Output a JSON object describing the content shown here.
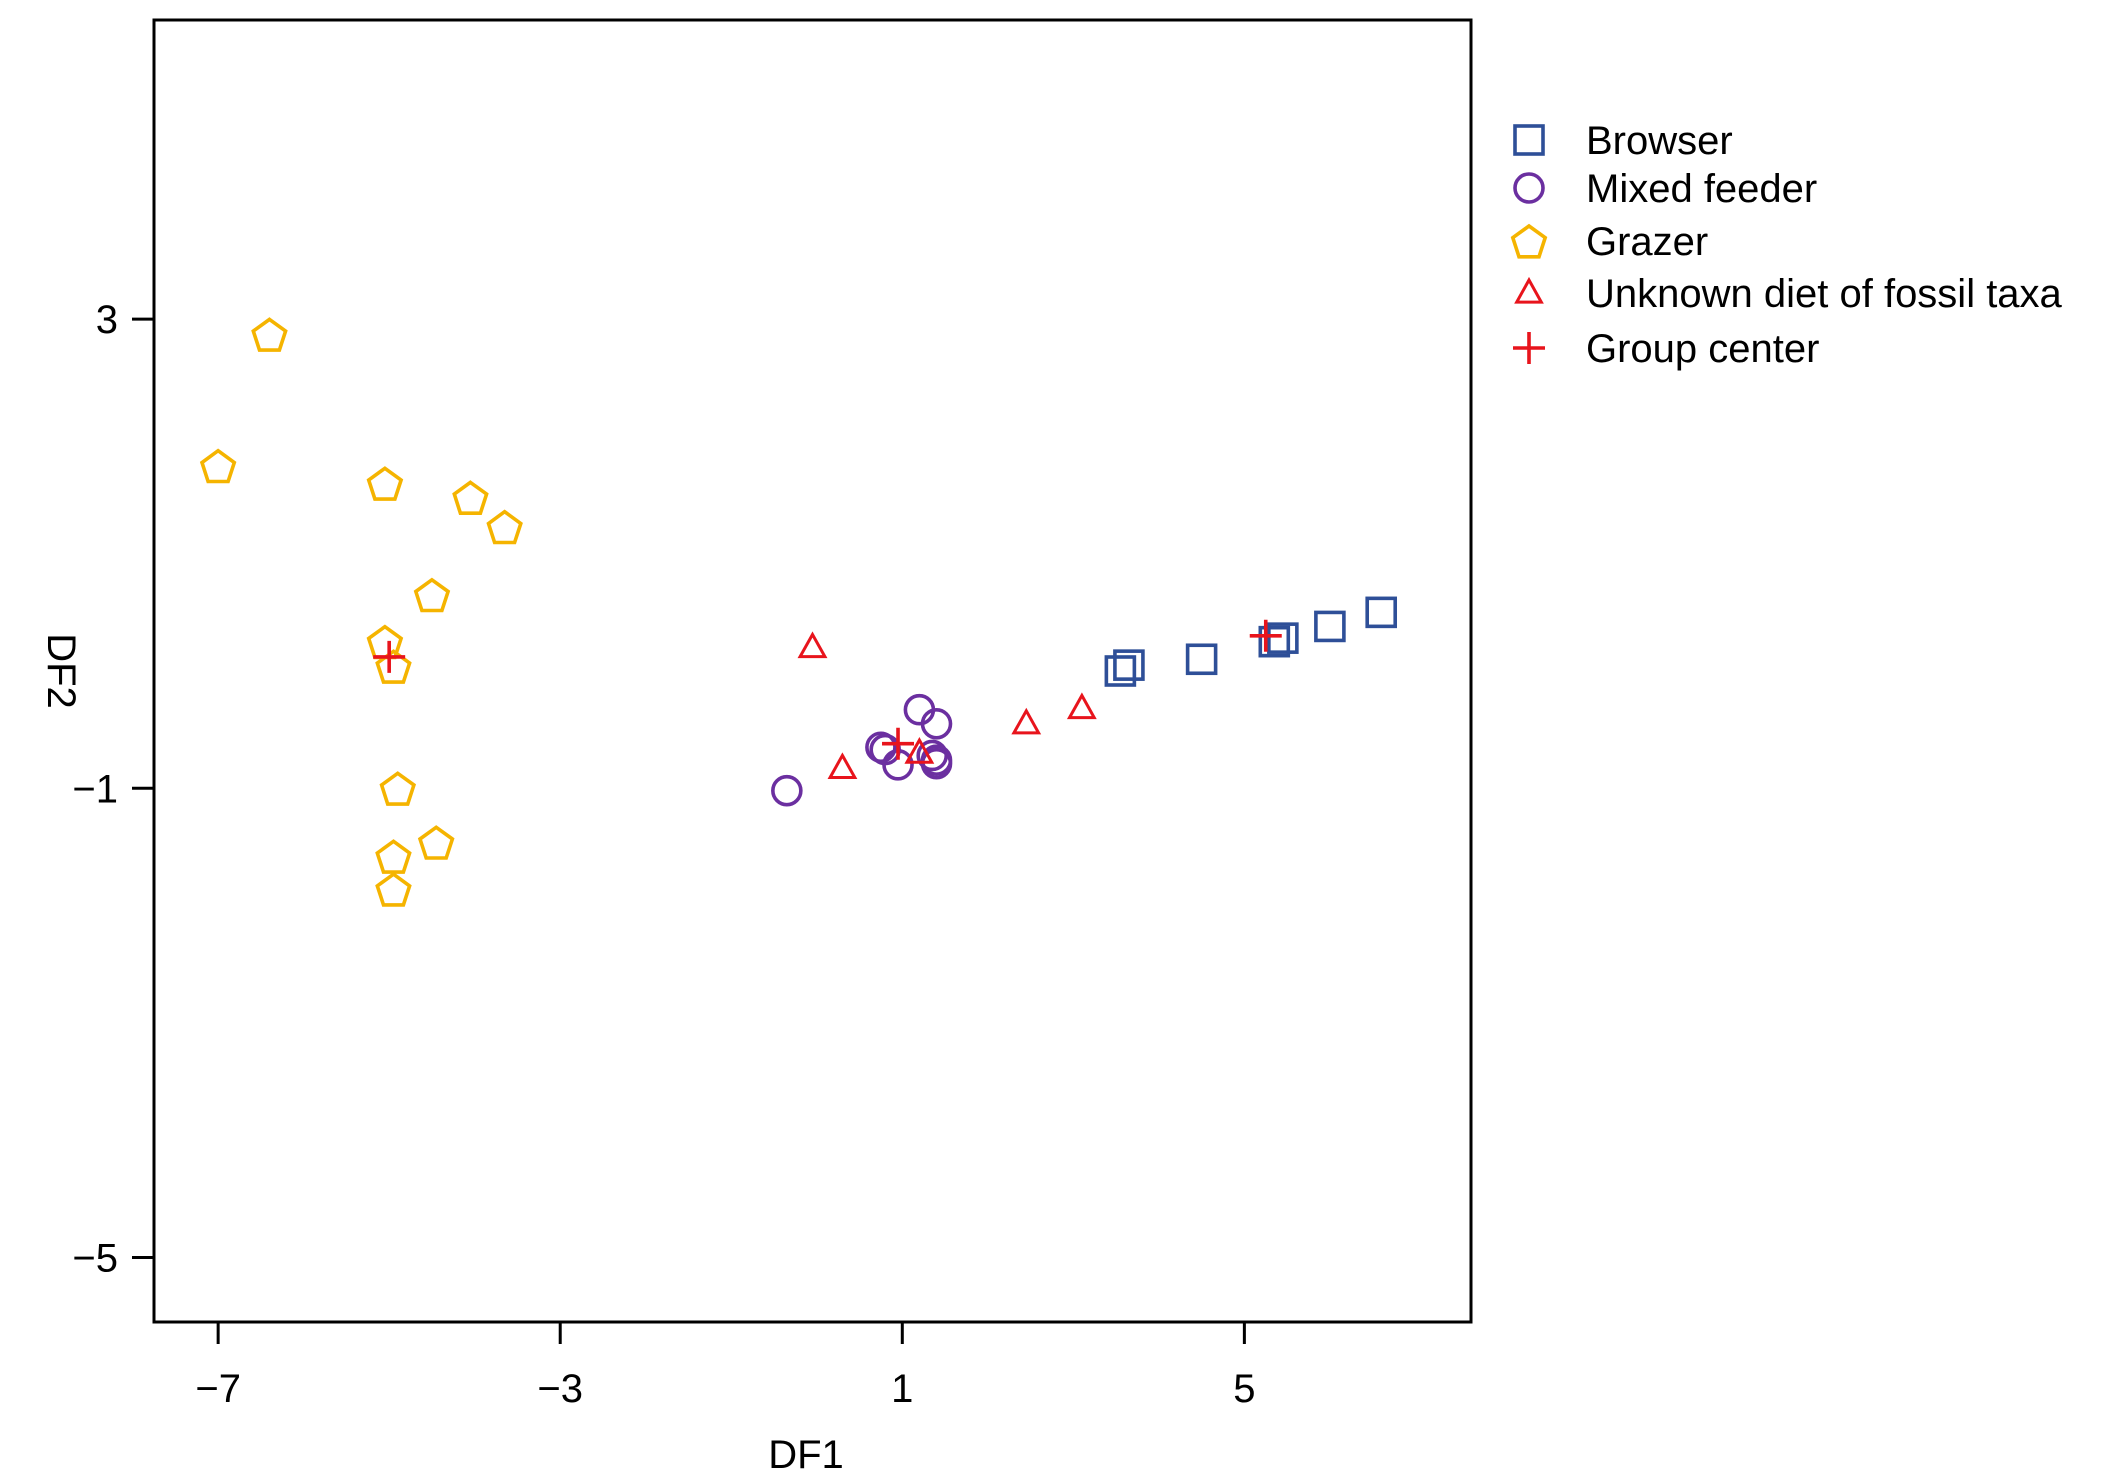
{
  "chart_data": {
    "type": "scatter",
    "title": "",
    "xlabel": "DF1",
    "ylabel": "DF2",
    "xlim": [
      -7.75,
      7.65
    ],
    "ylim": [
      -5.55,
      5.55
    ],
    "xticks": [
      -7,
      -3,
      1,
      5
    ],
    "yticks": [
      3,
      -1,
      -5
    ],
    "xtick_labels": [
      "−7",
      "−3",
      "1",
      "5"
    ],
    "ytick_labels": [
      "3",
      "−1",
      "−5"
    ],
    "grid": false,
    "legend_position": "right",
    "series": [
      {
        "name": "Browser",
        "marker": "square",
        "color": "#2E4F98",
        "points": [
          [
            3.55,
            0.0
          ],
          [
            3.65,
            0.05
          ],
          [
            4.5,
            0.1
          ],
          [
            5.35,
            0.25
          ],
          [
            5.45,
            0.28
          ],
          [
            6.0,
            0.38
          ],
          [
            6.6,
            0.5
          ]
        ]
      },
      {
        "name": "Mixed feeder",
        "marker": "circle",
        "color": "#6B2FA0",
        "points": [
          [
            -0.35,
            -1.02
          ],
          [
            0.75,
            -0.65
          ],
          [
            0.8,
            -0.67
          ],
          [
            1.2,
            -0.33
          ],
          [
            1.4,
            -0.45
          ],
          [
            1.35,
            -0.72
          ],
          [
            1.4,
            -0.76
          ],
          [
            0.95,
            -0.8
          ],
          [
            1.4,
            -0.79
          ]
        ]
      },
      {
        "name": "Grazer",
        "marker": "pentagon",
        "color": "#F5B400",
        "points": [
          [
            -6.4,
            2.87
          ],
          [
            -7.0,
            1.75
          ],
          [
            -5.05,
            1.6
          ],
          [
            -4.5,
            0.65
          ],
          [
            -5.05,
            0.25
          ],
          [
            -4.05,
            1.48
          ],
          [
            -3.65,
            1.23
          ],
          [
            -4.95,
            0.04
          ],
          [
            -4.9,
            -1.0
          ],
          [
            -4.45,
            -1.46
          ],
          [
            -4.95,
            -1.58
          ],
          [
            -4.95,
            -1.86
          ]
        ]
      },
      {
        "name": "Unknown diet of fossil taxa",
        "marker": "triangle",
        "color": "#E8141C",
        "points": [
          [
            -0.05,
            0.2
          ],
          [
            0.3,
            -0.83
          ],
          [
            1.2,
            -0.7
          ],
          [
            2.45,
            -0.45
          ],
          [
            3.1,
            -0.32
          ]
        ]
      },
      {
        "name": "Group center",
        "marker": "plus",
        "color": "#E8141C",
        "points": [
          [
            -5.0,
            0.12
          ],
          [
            0.95,
            -0.62
          ],
          [
            5.25,
            0.3
          ]
        ]
      }
    ]
  }
}
